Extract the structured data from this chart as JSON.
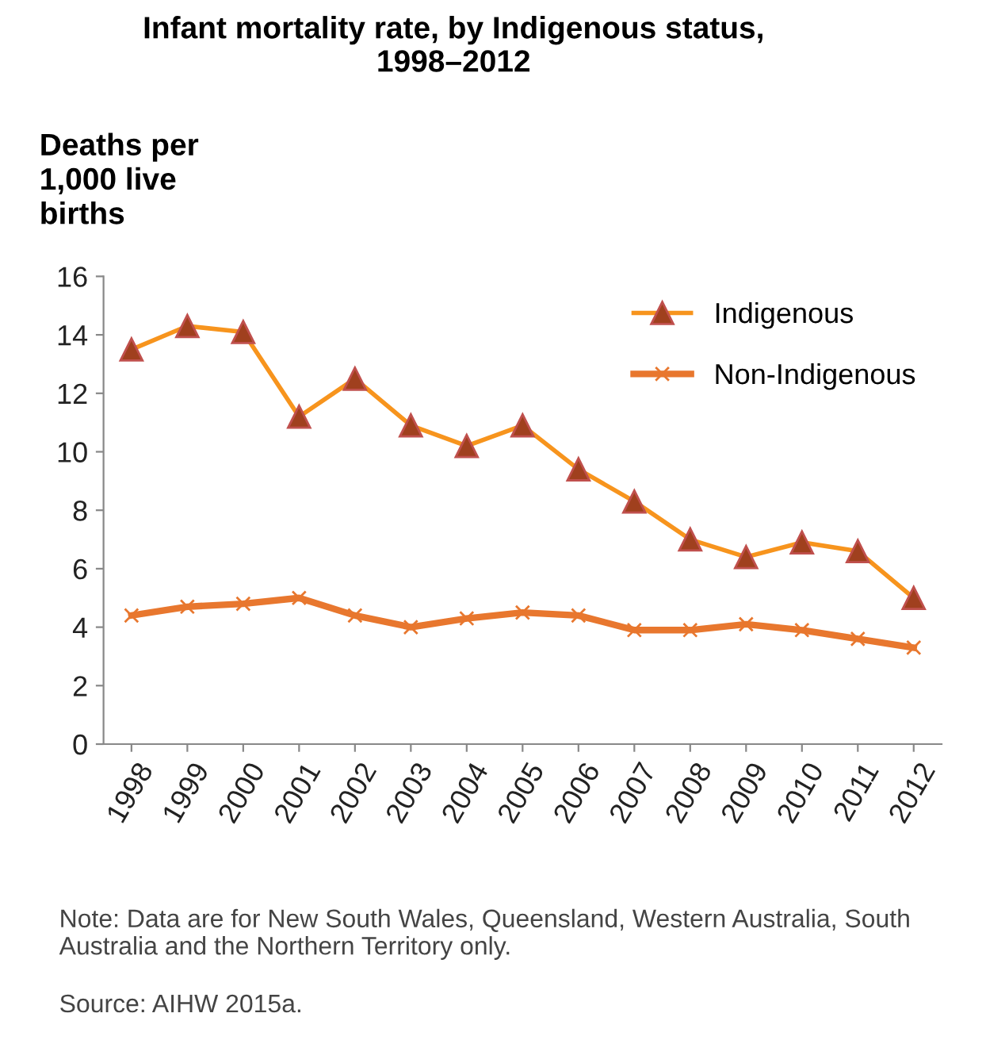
{
  "chart_data": {
    "type": "line",
    "title": "Infant mortality rate, by Indigenous status,\n1998–2012",
    "ylabel": "Deaths per\n1,000 live\nbirths",
    "categories": [
      "1998",
      "1999",
      "2000",
      "2001",
      "2002",
      "2003",
      "2004",
      "2005",
      "2006",
      "2007",
      "2008",
      "2009",
      "2010",
      "2011",
      "2012"
    ],
    "series": [
      {
        "name": "Indigenous",
        "color": "#f7941d",
        "marker": "triangle",
        "values": [
          13.5,
          14.3,
          14.1,
          11.2,
          12.5,
          10.9,
          10.2,
          10.9,
          9.4,
          8.3,
          7.0,
          6.4,
          6.9,
          6.6,
          5.0
        ]
      },
      {
        "name": "Non-Indigenous",
        "color": "#e8772e",
        "marker": "cross",
        "values": [
          4.4,
          4.7,
          4.8,
          5.0,
          4.4,
          4.0,
          4.3,
          4.5,
          4.4,
          3.9,
          3.9,
          4.1,
          3.9,
          3.6,
          3.3
        ]
      }
    ],
    "ylim": [
      0,
      16
    ],
    "yticks": [
      0,
      2,
      4,
      6,
      8,
      10,
      12,
      14,
      16
    ],
    "grid": false,
    "legend": "top right",
    "line_style": "solid",
    "annotations": [
      "Note: Data are for New South Wales, Queensland, Western Australia, South Australia and the Northern Territory only.",
      "Source: AIHW 2015a."
    ]
  }
}
